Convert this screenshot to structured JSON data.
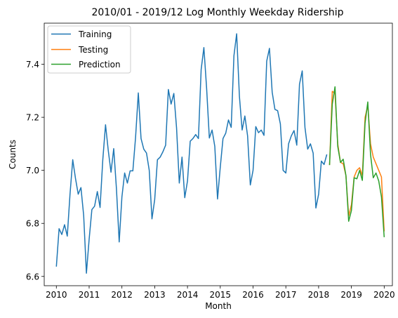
{
  "chart_data": {
    "type": "line",
    "title": "2010/01 - 2019/12 Log Monthly Weekday Ridership",
    "xlabel": "Month",
    "ylabel": "Counts",
    "xlim": [
      2009.63,
      2020.25
    ],
    "ylim": [
      6.565,
      7.555
    ],
    "x_ticks": [
      2010,
      2011,
      2012,
      2013,
      2014,
      2015,
      2016,
      2017,
      2018,
      2019,
      2020
    ],
    "x_tick_labels": [
      "2010",
      "2011",
      "2012",
      "2013",
      "2014",
      "2015",
      "2016",
      "2017",
      "2018",
      "2019",
      "2020"
    ],
    "y_ticks": [
      6.6,
      6.8,
      7.0,
      7.2,
      7.4
    ],
    "y_tick_labels": [
      "6.6",
      "6.8",
      "7.0",
      "7.2",
      "7.4"
    ],
    "legend": {
      "placement": "upper-left",
      "entries": [
        "Training",
        "Testing",
        "Prediction"
      ]
    },
    "colors": {
      "Training": "#1f77b4",
      "Testing": "#ff7f0e",
      "Prediction": "#2ca02c"
    },
    "series": [
      {
        "name": "Training",
        "start": 2010.0,
        "step": 0.083333,
        "values": [
          6.637,
          6.78,
          6.758,
          6.795,
          6.752,
          6.91,
          7.04,
          6.97,
          6.91,
          6.935,
          6.83,
          6.612,
          6.74,
          6.852,
          6.865,
          6.92,
          6.86,
          7.04,
          7.172,
          7.075,
          6.993,
          7.082,
          6.93,
          6.73,
          6.9,
          6.99,
          6.952,
          6.998,
          6.998,
          7.125,
          7.292,
          7.12,
          7.08,
          7.065,
          7.0,
          6.817,
          6.89,
          7.04,
          7.05,
          7.07,
          7.095,
          7.305,
          7.25,
          7.29,
          7.16,
          6.952,
          7.05,
          6.897,
          6.96,
          7.11,
          7.12,
          7.135,
          7.12,
          7.38,
          7.463,
          7.31,
          7.122,
          7.152,
          7.09,
          6.892,
          7.012,
          7.12,
          7.14,
          7.19,
          7.162,
          7.432,
          7.515,
          7.28,
          7.152,
          7.205,
          7.13,
          6.945,
          7.0,
          7.165,
          7.142,
          7.152,
          7.132,
          7.412,
          7.46,
          7.295,
          7.23,
          7.225,
          7.175,
          7.0,
          6.99,
          7.1,
          7.13,
          7.15,
          7.095,
          7.325,
          7.375,
          7.162,
          7.08,
          7.1,
          7.065,
          6.858,
          6.91,
          7.035,
          7.022,
          7.06
        ]
      },
      {
        "name": "Testing",
        "start": 2018.333333,
        "step": 0.083333,
        "values": [
          7.02,
          7.298,
          7.29,
          7.1,
          7.03,
          7.025,
          6.98,
          6.828,
          6.87,
          6.975,
          7.0,
          7.01,
          6.98,
          7.2,
          7.245,
          7.1,
          7.05,
          7.025,
          7.0,
          6.975,
          6.77
        ]
      },
      {
        "name": "Prediction",
        "start": 2018.333333,
        "step": 0.083333,
        "values": [
          7.02,
          7.25,
          7.315,
          7.09,
          7.03,
          7.042,
          6.98,
          6.808,
          6.848,
          6.972,
          6.968,
          7.0,
          6.962,
          7.178,
          7.258,
          7.06,
          6.972,
          6.99,
          6.96,
          6.9,
          6.748
        ]
      }
    ]
  }
}
